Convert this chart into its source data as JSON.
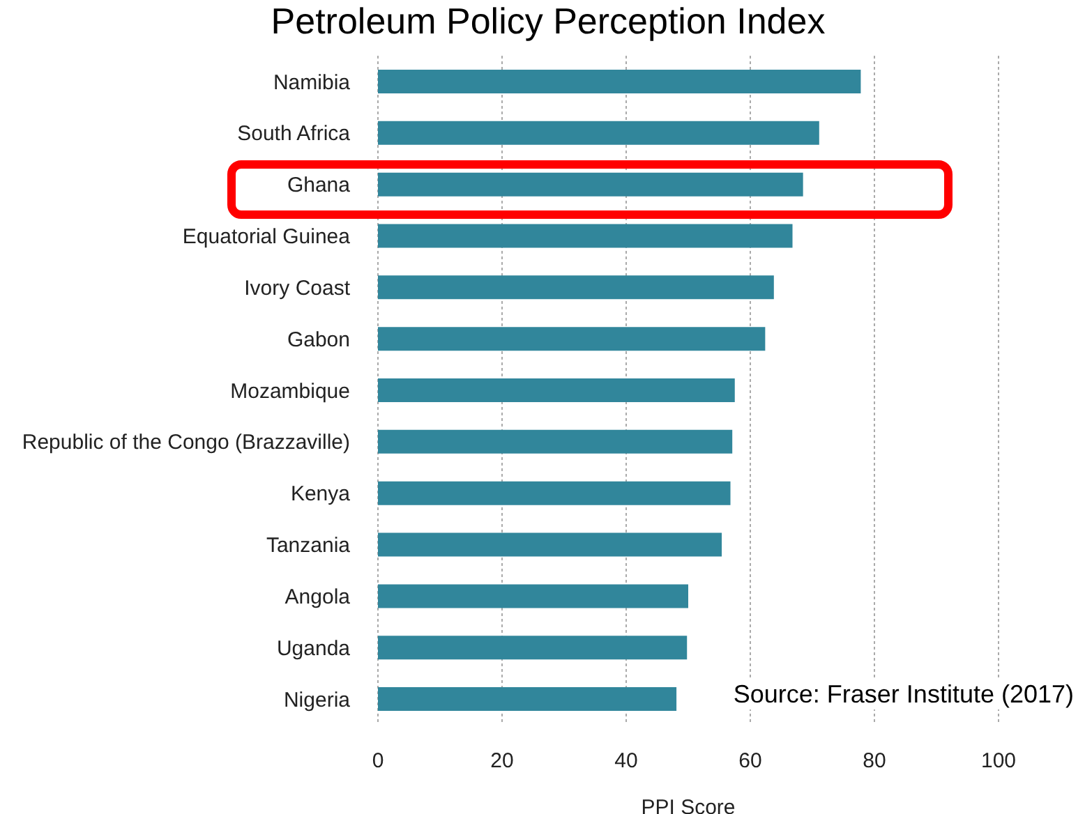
{
  "chart_data": {
    "type": "bar",
    "orientation": "horizontal",
    "title": "Petroleum Policy Perception Index",
    "xlabel": "PPI Score",
    "categories": [
      "Namibia",
      "South Africa",
      "Ghana",
      "Equatorial Guinea",
      "Ivory Coast",
      "Gabon",
      "Mozambique",
      "Republic of the Congo (Brazzaville)",
      "Kenya",
      "Tanzania",
      "Angola",
      "Uganda",
      "Nigeria"
    ],
    "values": [
      77.8,
      71.1,
      68.5,
      66.8,
      63.8,
      62.4,
      57.5,
      57.1,
      56.8,
      55.4,
      50.0,
      49.8,
      48.1
    ],
    "color": "#31869b",
    "xlim": [
      0,
      100
    ],
    "xticks": [
      0,
      20,
      40,
      60,
      80,
      100
    ],
    "grid": "x",
    "annotations": [
      "Source: Fraser Institute (2017)"
    ]
  }
}
